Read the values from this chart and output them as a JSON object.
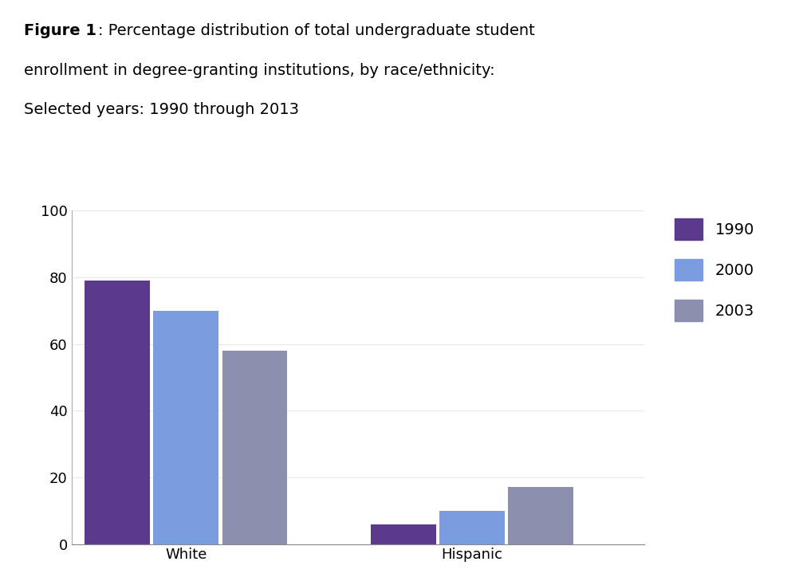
{
  "title_bold_part": "Figure 1",
  "title_normal_part": ": Percentage distribution of total undergraduate student\nenrollment in degree-granting institutions, by race/ethnicity:\nSelected years: 1990 through 2013",
  "categories": [
    "White",
    "Hispanic"
  ],
  "years": [
    "1990",
    "2000",
    "2003"
  ],
  "values": {
    "White": [
      79,
      70,
      58
    ],
    "Hispanic": [
      6,
      10,
      17
    ]
  },
  "bar_colors": [
    "#5b3a8e",
    "#7b9de0",
    "#8b8fad"
  ],
  "ylim": [
    0,
    100
  ],
  "yticks": [
    0,
    20,
    40,
    60,
    80,
    100
  ],
  "background_color": "#ffffff",
  "bar_width": 0.18,
  "legend_labels": [
    "1990",
    "2000",
    "2003"
  ],
  "title_fontsize": 14,
  "axis_fontsize": 13,
  "legend_fontsize": 14
}
